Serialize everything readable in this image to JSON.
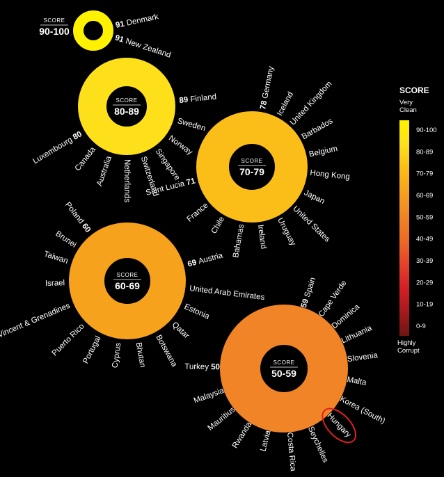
{
  "chart_data": {
    "type": "radial-group",
    "legend": {
      "title": "SCORE",
      "top_label": [
        "Very",
        "Clean"
      ],
      "bottom_label": [
        "Highly",
        "Corrupt"
      ],
      "bands": [
        {
          "label": "90-100",
          "color": "#fff200"
        },
        {
          "label": "80-89",
          "color": "#fde01a"
        },
        {
          "label": "70-79",
          "color": "#fbbd18"
        },
        {
          "label": "60-69",
          "color": "#f7a21c"
        },
        {
          "label": "50-59",
          "color": "#f08426"
        },
        {
          "label": "40-49",
          "color": "#ec6b26"
        },
        {
          "label": "30-39",
          "color": "#e5422a"
        },
        {
          "label": "20-29",
          "color": "#d51f26"
        },
        {
          "label": "10-19",
          "color": "#a6191e"
        },
        {
          "label": "0-9",
          "color": "#6e1514"
        }
      ]
    },
    "groups": [
      {
        "score_label": "SCORE",
        "range": "90-100",
        "color": "#fff200",
        "countries": [
          {
            "name": "Denmark",
            "score": 91
          },
          {
            "name": "New Zealand",
            "score": 91
          }
        ]
      },
      {
        "score_label": "SCORE",
        "range": "80-89",
        "color": "#fde01a",
        "countries": [
          {
            "name": "Finland",
            "score": 89
          },
          {
            "name": "Sweden",
            "score": null
          },
          {
            "name": "Norway",
            "score": null
          },
          {
            "name": "Singapore",
            "score": null
          },
          {
            "name": "Switzerland",
            "score": null
          },
          {
            "name": "Netherlands",
            "score": null
          },
          {
            "name": "Australia",
            "score": null
          },
          {
            "name": "Canada",
            "score": null
          },
          {
            "name": "Luxembourg",
            "score": 80
          }
        ]
      },
      {
        "score_label": "SCORE",
        "range": "70-79",
        "color": "#fbbd18",
        "countries": [
          {
            "name": "Germany",
            "score": 78
          },
          {
            "name": "Iceland",
            "score": null
          },
          {
            "name": "United Kingdom",
            "score": null
          },
          {
            "name": "Barbados",
            "score": null
          },
          {
            "name": "Belgium",
            "score": null
          },
          {
            "name": "Hong Kong",
            "score": null
          },
          {
            "name": "Japan",
            "score": null
          },
          {
            "name": "United States",
            "score": null
          },
          {
            "name": "Uruguay",
            "score": null
          },
          {
            "name": "Ireland",
            "score": null
          },
          {
            "name": "Bahamas",
            "score": null
          },
          {
            "name": "Chile",
            "score": null
          },
          {
            "name": "France",
            "score": null
          },
          {
            "name": "Saint Lucia",
            "score": 71
          }
        ]
      },
      {
        "score_label": "SCORE",
        "range": "60-69",
        "color": "#f7a21c",
        "countries": [
          {
            "name": "Austria",
            "score": 69
          },
          {
            "name": "United Arab Emirates",
            "score": null
          },
          {
            "name": "Estonia",
            "score": null
          },
          {
            "name": "Qatar",
            "score": null
          },
          {
            "name": "Botswana",
            "score": null
          },
          {
            "name": "Bhutan",
            "score": null
          },
          {
            "name": "Cyprus",
            "score": null
          },
          {
            "name": "Portugal",
            "score": null
          },
          {
            "name": "Puerto Rico",
            "score": null
          },
          {
            "name": "St Vincent & Grenadines",
            "score": null
          },
          {
            "name": "Israel",
            "score": null
          },
          {
            "name": "Taiwan",
            "score": null
          },
          {
            "name": "Brunei",
            "score": null
          },
          {
            "name": "Poland",
            "score": 60
          }
        ]
      },
      {
        "score_label": "SCORE",
        "range": "50-59",
        "color": "#f08426",
        "countries": [
          {
            "name": "Spain",
            "score": 59
          },
          {
            "name": "Cape Verde",
            "score": null
          },
          {
            "name": "Dominica",
            "score": null
          },
          {
            "name": "Lithuania",
            "score": null
          },
          {
            "name": "Slovenia",
            "score": null
          },
          {
            "name": "Malta",
            "score": null
          },
          {
            "name": "Korea (South)",
            "score": null
          },
          {
            "name": "Hungary",
            "score": null,
            "highlighted": true
          },
          {
            "name": "Seychelles",
            "score": null
          },
          {
            "name": "Costa Rica",
            "score": null
          },
          {
            "name": "Latvia",
            "score": null
          },
          {
            "name": "Rwanda",
            "score": null
          },
          {
            "name": "Mauritius",
            "score": null
          },
          {
            "name": "Malaysia",
            "score": null
          },
          {
            "name": "Turkey",
            "score": 50
          }
        ]
      }
    ],
    "highlight_color": "#e02020"
  }
}
